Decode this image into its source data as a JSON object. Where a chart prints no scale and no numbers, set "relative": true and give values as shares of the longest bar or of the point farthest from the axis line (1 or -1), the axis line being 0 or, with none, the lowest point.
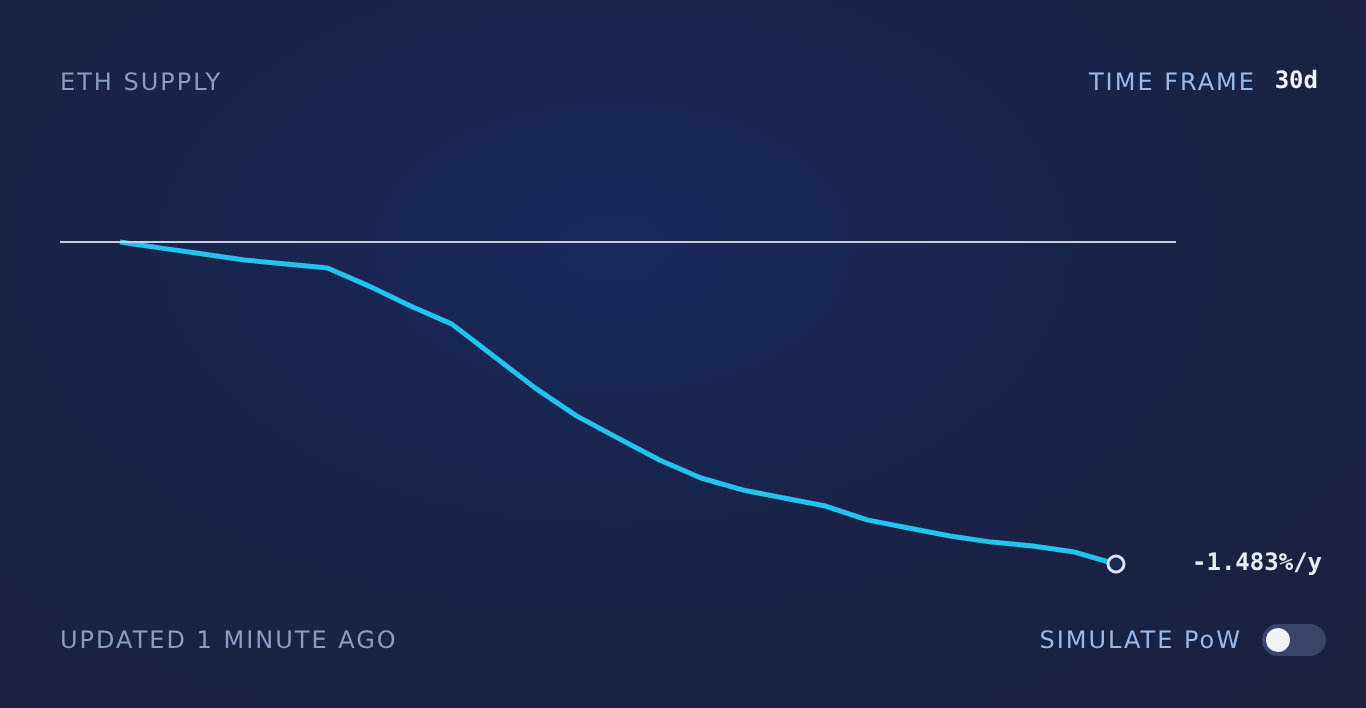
{
  "chart_data": {
    "type": "line",
    "title": "ETH SUPPLY",
    "relative": true,
    "categories": [
      null,
      null,
      null,
      null,
      null,
      null,
      null,
      null,
      null,
      null,
      null,
      null,
      null,
      null,
      null,
      null,
      null,
      null,
      null,
      null,
      null,
      null,
      null,
      null,
      null
    ],
    "series": [
      {
        "color": "#22c4ee",
        "values": [
          0,
          -0.019,
          -0.037,
          -0.056,
          -0.068,
          -0.081,
          -0.137,
          -0.199,
          -0.255,
          -0.354,
          -0.453,
          -0.54,
          -0.609,
          -0.677,
          -0.733,
          -0.77,
          -0.795,
          -0.82,
          -0.863,
          -0.888,
          -0.913,
          -0.932,
          -0.944,
          -0.963,
          -1
        ]
      }
    ],
    "ref_lines": [
      {
        "axis": "y",
        "value": 0,
        "color": "#c8cfe0"
      }
    ],
    "annotations": [
      "TIME FRAME",
      "30d",
      "UPDATED 1 MINUTE AGO",
      "SIMULATE PoW",
      "-1.483%/y"
    ],
    "legend": false
  }
}
